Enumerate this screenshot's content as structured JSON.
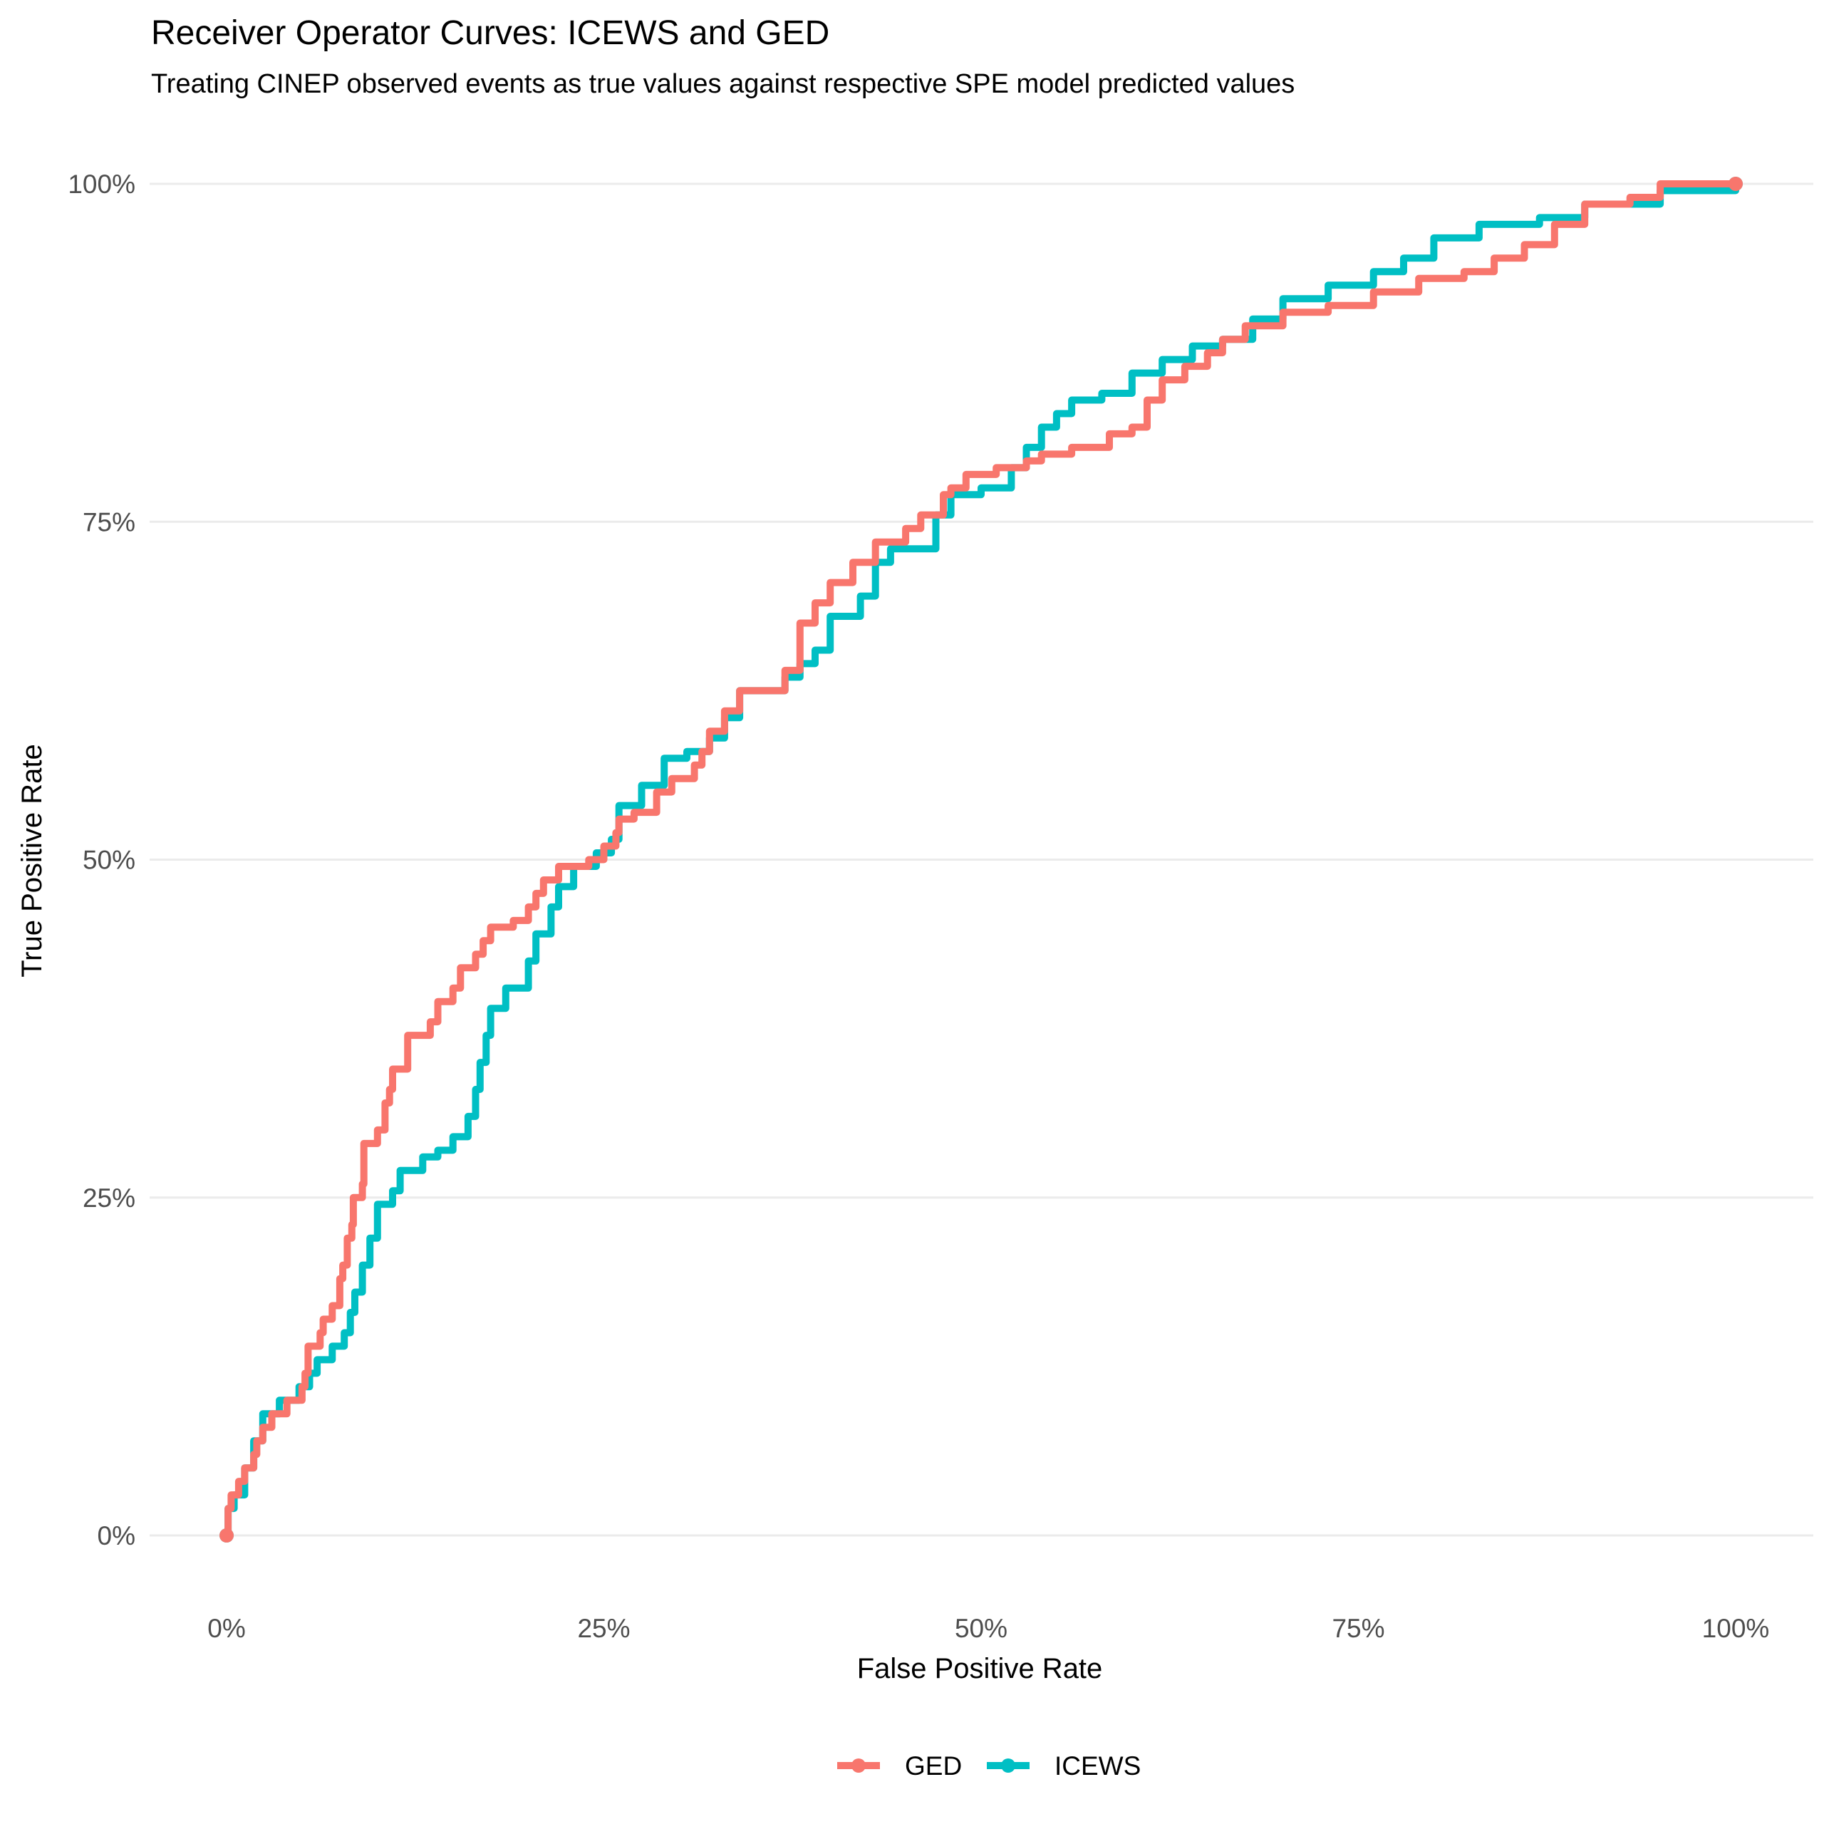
{
  "chart_data": {
    "type": "line",
    "title": "Receiver Operator Curves: ICEWS and GED",
    "subtitle": "Treating CINEP observed events as true values against respective SPE model predicted values",
    "xlabel": "False Positive Rate",
    "ylabel": "True Positive Rate",
    "xlim": [
      0,
      1
    ],
    "ylim": [
      0,
      1
    ],
    "x_ticks": [
      0,
      0.25,
      0.5,
      0.75,
      1
    ],
    "y_ticks": [
      0,
      0.25,
      0.5,
      0.75,
      1
    ],
    "x_tick_labels": [
      "0%",
      "25%",
      "50%",
      "75%",
      "100%"
    ],
    "y_tick_labels": [
      "0%",
      "25%",
      "50%",
      "75%",
      "100%"
    ],
    "grid": true,
    "legend_position": "bottom",
    "series": [
      {
        "name": "GED",
        "color": "#F8766D",
        "points": [
          [
            0,
            0
          ],
          [
            0.001,
            0.02
          ],
          [
            0.003,
            0.03
          ],
          [
            0.008,
            0.04
          ],
          [
            0.012,
            0.05
          ],
          [
            0.018,
            0.06
          ],
          [
            0.02,
            0.07
          ],
          [
            0.024,
            0.08
          ],
          [
            0.03,
            0.09
          ],
          [
            0.04,
            0.1
          ],
          [
            0.05,
            0.11
          ],
          [
            0.052,
            0.12
          ],
          [
            0.054,
            0.14
          ],
          [
            0.062,
            0.15
          ],
          [
            0.064,
            0.16
          ],
          [
            0.07,
            0.17
          ],
          [
            0.075,
            0.19
          ],
          [
            0.077,
            0.2
          ],
          [
            0.08,
            0.22
          ],
          [
            0.083,
            0.23
          ],
          [
            0.084,
            0.25
          ],
          [
            0.09,
            0.26
          ],
          [
            0.091,
            0.29
          ],
          [
            0.1,
            0.3
          ],
          [
            0.105,
            0.32
          ],
          [
            0.108,
            0.33
          ],
          [
            0.11,
            0.345
          ],
          [
            0.12,
            0.37
          ],
          [
            0.135,
            0.38
          ],
          [
            0.14,
            0.395
          ],
          [
            0.15,
            0.405
          ],
          [
            0.155,
            0.42
          ],
          [
            0.165,
            0.43
          ],
          [
            0.17,
            0.44
          ],
          [
            0.175,
            0.45
          ],
          [
            0.19,
            0.455
          ],
          [
            0.2,
            0.465
          ],
          [
            0.205,
            0.475
          ],
          [
            0.21,
            0.485
          ],
          [
            0.22,
            0.495
          ],
          [
            0.24,
            0.5
          ],
          [
            0.25,
            0.51
          ],
          [
            0.258,
            0.52
          ],
          [
            0.26,
            0.53
          ],
          [
            0.27,
            0.535
          ],
          [
            0.285,
            0.55
          ],
          [
            0.295,
            0.56
          ],
          [
            0.31,
            0.57
          ],
          [
            0.315,
            0.58
          ],
          [
            0.32,
            0.595
          ],
          [
            0.33,
            0.61
          ],
          [
            0.34,
            0.625
          ],
          [
            0.37,
            0.64
          ],
          [
            0.38,
            0.675
          ],
          [
            0.39,
            0.69
          ],
          [
            0.4,
            0.705
          ],
          [
            0.415,
            0.72
          ],
          [
            0.43,
            0.735
          ],
          [
            0.45,
            0.745
          ],
          [
            0.46,
            0.755
          ],
          [
            0.475,
            0.77
          ],
          [
            0.48,
            0.775
          ],
          [
            0.49,
            0.785
          ],
          [
            0.51,
            0.79
          ],
          [
            0.53,
            0.795
          ],
          [
            0.54,
            0.8
          ],
          [
            0.56,
            0.805
          ],
          [
            0.585,
            0.815
          ],
          [
            0.6,
            0.82
          ],
          [
            0.61,
            0.84
          ],
          [
            0.62,
            0.855
          ],
          [
            0.635,
            0.865
          ],
          [
            0.65,
            0.875
          ],
          [
            0.66,
            0.885
          ],
          [
            0.675,
            0.895
          ],
          [
            0.7,
            0.905
          ],
          [
            0.73,
            0.91
          ],
          [
            0.76,
            0.92
          ],
          [
            0.79,
            0.93
          ],
          [
            0.82,
            0.935
          ],
          [
            0.84,
            0.945
          ],
          [
            0.86,
            0.955
          ],
          [
            0.88,
            0.97
          ],
          [
            0.9,
            0.985
          ],
          [
            0.93,
            0.99
          ],
          [
            0.95,
            1.0
          ],
          [
            1.0,
            1.0
          ]
        ]
      },
      {
        "name": "ICEWS",
        "color": "#00BFC4",
        "points": [
          [
            0,
            0
          ],
          [
            0.001,
            0.02
          ],
          [
            0.005,
            0.03
          ],
          [
            0.012,
            0.05
          ],
          [
            0.018,
            0.07
          ],
          [
            0.024,
            0.09
          ],
          [
            0.035,
            0.1
          ],
          [
            0.048,
            0.11
          ],
          [
            0.055,
            0.12
          ],
          [
            0.06,
            0.13
          ],
          [
            0.07,
            0.14
          ],
          [
            0.078,
            0.15
          ],
          [
            0.082,
            0.165
          ],
          [
            0.085,
            0.18
          ],
          [
            0.09,
            0.2
          ],
          [
            0.095,
            0.22
          ],
          [
            0.1,
            0.245
          ],
          [
            0.11,
            0.255
          ],
          [
            0.115,
            0.27
          ],
          [
            0.13,
            0.28
          ],
          [
            0.14,
            0.285
          ],
          [
            0.15,
            0.295
          ],
          [
            0.16,
            0.31
          ],
          [
            0.165,
            0.33
          ],
          [
            0.168,
            0.35
          ],
          [
            0.172,
            0.37
          ],
          [
            0.175,
            0.39
          ],
          [
            0.185,
            0.405
          ],
          [
            0.2,
            0.425
          ],
          [
            0.205,
            0.445
          ],
          [
            0.215,
            0.465
          ],
          [
            0.22,
            0.48
          ],
          [
            0.23,
            0.495
          ],
          [
            0.245,
            0.505
          ],
          [
            0.255,
            0.515
          ],
          [
            0.26,
            0.54
          ],
          [
            0.275,
            0.555
          ],
          [
            0.29,
            0.575
          ],
          [
            0.305,
            0.58
          ],
          [
            0.32,
            0.59
          ],
          [
            0.33,
            0.605
          ],
          [
            0.34,
            0.625
          ],
          [
            0.37,
            0.635
          ],
          [
            0.38,
            0.645
          ],
          [
            0.39,
            0.655
          ],
          [
            0.4,
            0.68
          ],
          [
            0.42,
            0.695
          ],
          [
            0.43,
            0.72
          ],
          [
            0.44,
            0.73
          ],
          [
            0.47,
            0.755
          ],
          [
            0.48,
            0.77
          ],
          [
            0.5,
            0.775
          ],
          [
            0.52,
            0.79
          ],
          [
            0.53,
            0.805
          ],
          [
            0.54,
            0.82
          ],
          [
            0.55,
            0.83
          ],
          [
            0.56,
            0.84
          ],
          [
            0.58,
            0.845
          ],
          [
            0.6,
            0.86
          ],
          [
            0.62,
            0.87
          ],
          [
            0.64,
            0.88
          ],
          [
            0.66,
            0.885
          ],
          [
            0.68,
            0.9
          ],
          [
            0.7,
            0.915
          ],
          [
            0.73,
            0.925
          ],
          [
            0.76,
            0.935
          ],
          [
            0.78,
            0.945
          ],
          [
            0.8,
            0.96
          ],
          [
            0.83,
            0.97
          ],
          [
            0.87,
            0.975
          ],
          [
            0.9,
            0.985
          ],
          [
            0.95,
            0.995
          ],
          [
            1.0,
            1.0
          ]
        ]
      }
    ]
  }
}
